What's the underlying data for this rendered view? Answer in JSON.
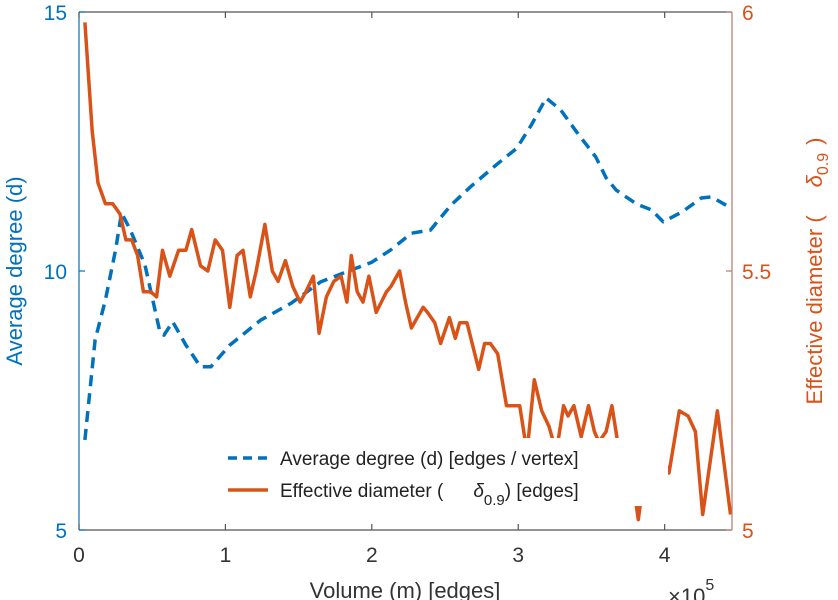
{
  "chart_data": {
    "type": "line",
    "xlabel": "Volume (m) [edges]",
    "x_exponent_label": "×10",
    "x_exponent": "5",
    "ylabel_left": "Average degree (d)",
    "ylabel_right_prefix": "Effective diameter (",
    "ylabel_right_symbol": "δ",
    "ylabel_right_sub": "0.9",
    "ylabel_right_suffix": ")",
    "xlim": [
      0,
      4.46
    ],
    "ylim_left": [
      5,
      15
    ],
    "ylim_right": [
      5,
      6
    ],
    "x_ticks": [
      "0",
      "1",
      "2",
      "3",
      "4"
    ],
    "y_ticks_left": [
      "5",
      "10",
      "15"
    ],
    "y_ticks_right": [
      "5",
      "5.5",
      "6"
    ],
    "grid": false,
    "legend_placement": "bottom-right",
    "colors": {
      "left": "#0072BD",
      "right": "#D95319",
      "right_axis": "#B07A6C",
      "axis": "#555555"
    },
    "series": [
      {
        "name": "Average degree (d) [edges / vertex]",
        "axis": "left",
        "style": "dashed",
        "x": [
          0.04,
          0.11,
          0.18,
          0.25,
          0.29,
          0.35,
          0.45,
          0.55,
          0.58,
          0.64,
          0.73,
          0.83,
          0.9,
          1.03,
          1.24,
          1.45,
          1.65,
          1.86,
          2.0,
          2.13,
          2.27,
          2.4,
          2.54,
          2.68,
          2.85,
          2.99,
          3.09,
          3.19,
          3.29,
          3.4,
          3.53,
          3.6,
          3.67,
          3.81,
          3.91,
          3.99,
          4.12,
          4.25,
          4.32,
          4.42
        ],
        "y": [
          6.74,
          8.67,
          9.44,
          10.41,
          11.12,
          10.8,
          10.12,
          8.86,
          8.76,
          9.02,
          8.57,
          8.15,
          8.15,
          8.57,
          9.05,
          9.38,
          9.79,
          10.02,
          10.17,
          10.41,
          10.73,
          10.79,
          11.27,
          11.64,
          12.05,
          12.37,
          12.82,
          13.34,
          13.11,
          12.68,
          12.2,
          11.8,
          11.56,
          11.29,
          11.18,
          10.95,
          11.14,
          11.41,
          11.43,
          11.27
        ]
      },
      {
        "name_prefix": "Effective diameter (",
        "name_symbol": "δ",
        "name_sub": "0.9",
        "name_suffix": ") [edges]",
        "axis": "right",
        "style": "solid",
        "x": [
          0.04,
          0.09,
          0.13,
          0.18,
          0.23,
          0.28,
          0.32,
          0.36,
          0.4,
          0.44,
          0.49,
          0.53,
          0.57,
          0.62,
          0.68,
          0.73,
          0.77,
          0.83,
          0.88,
          0.93,
          0.98,
          1.03,
          1.08,
          1.12,
          1.17,
          1.21,
          1.27,
          1.32,
          1.36,
          1.41,
          1.46,
          1.51,
          1.55,
          1.6,
          1.64,
          1.69,
          1.74,
          1.79,
          1.83,
          1.86,
          1.9,
          1.94,
          1.98,
          2.03,
          2.1,
          2.13,
          2.19,
          2.23,
          2.27,
          2.35,
          2.38,
          2.43,
          2.47,
          2.53,
          2.57,
          2.6,
          2.65,
          2.73,
          2.77,
          2.81,
          2.86,
          2.92,
          2.96,
          3.01,
          3.06,
          3.11,
          3.16,
          3.21,
          3.26,
          3.31,
          3.34,
          3.38,
          3.43,
          3.48,
          3.52,
          3.55,
          3.6,
          3.64,
          3.69,
          3.74,
          3.77,
          3.82,
          3.88,
          3.93,
          3.98,
          4.03,
          4.1,
          4.16,
          4.21,
          4.26,
          4.32,
          4.36,
          4.45
        ],
        "y": [
          5.98,
          5.77,
          5.67,
          5.63,
          5.63,
          5.61,
          5.56,
          5.56,
          5.53,
          5.46,
          5.46,
          5.45,
          5.54,
          5.49,
          5.54,
          5.54,
          5.58,
          5.51,
          5.5,
          5.56,
          5.54,
          5.43,
          5.53,
          5.54,
          5.45,
          5.5,
          5.59,
          5.5,
          5.48,
          5.52,
          5.47,
          5.44,
          5.46,
          5.49,
          5.38,
          5.45,
          5.48,
          5.49,
          5.44,
          5.53,
          5.46,
          5.44,
          5.49,
          5.42,
          5.46,
          5.47,
          5.5,
          5.44,
          5.39,
          5.43,
          5.42,
          5.4,
          5.36,
          5.41,
          5.37,
          5.4,
          5.4,
          5.31,
          5.36,
          5.36,
          5.34,
          5.24,
          5.24,
          5.24,
          5.15,
          5.29,
          5.23,
          5.2,
          5.15,
          5.24,
          5.22,
          5.24,
          5.18,
          5.24,
          5.19,
          5.17,
          5.19,
          5.24,
          5.15,
          5.12,
          5.12,
          5.02,
          5.15,
          5.16,
          5.15,
          5.11,
          5.23,
          5.22,
          5.19,
          5.03,
          5.15,
          5.23,
          5.03
        ]
      }
    ]
  }
}
